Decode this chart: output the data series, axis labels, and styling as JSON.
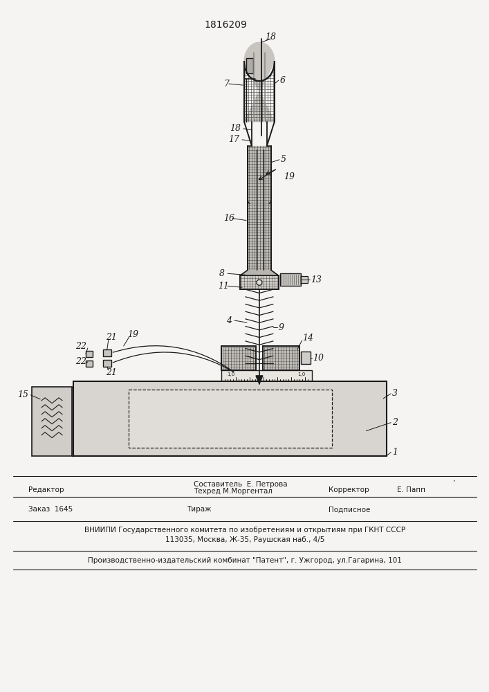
{
  "patent_number": "1816209",
  "bg_color": "#f5f4f2",
  "line_color": "#1a1a1a",
  "footer": {
    "line1_left": "Редактор",
    "line1_center_top": "Составитель  Е. Петрова",
    "line1_center_bot": "Техред М.Моргентал",
    "line1_right_label": "Корректор",
    "line1_right_val": "Е. Папп",
    "line2_order": "Заказ  1645",
    "line2_mid": "Тираж",
    "line2_right": "Подписное",
    "line3a": "ВНИИПИ Государственного комитета по изобретениям и открытиям при ГКНТ СССР",
    "line3b": "113035, Москва, Ж-35, Раушская наб., 4/5",
    "line4": "Производственно-издательский комбинат \"Патент\", г. Ужгород, ул.Гагарина, 101"
  }
}
